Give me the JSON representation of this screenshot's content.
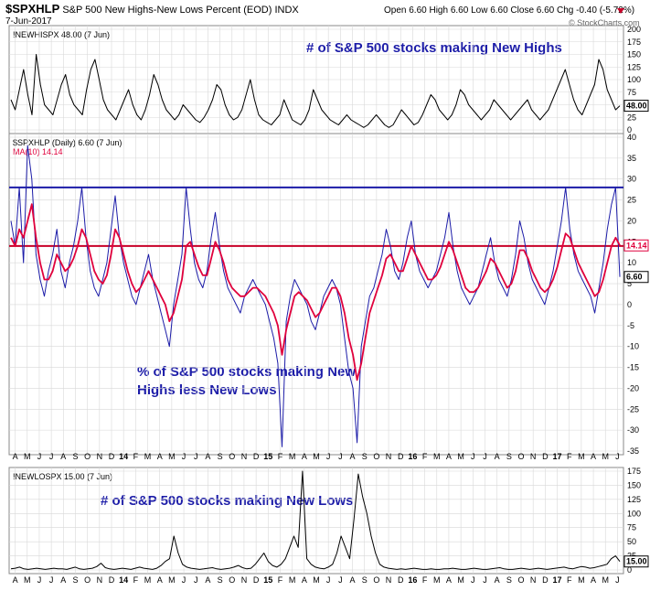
{
  "header": {
    "symbol": "$SPXHLP",
    "title": "S&P 500 New Highs-New Lows Percent (EOD)",
    "exchange": "INDX",
    "date": "7-Jun-2017",
    "quote": "Open 6.60  High 6.60  Low 6.60  Close 6.60  Chg -0.40 (-5.72%)",
    "source": "© StockCharts.com"
  },
  "colors": {
    "line": "#000000",
    "hlp": "#1c1ca8",
    "ma": "#e0003c",
    "ref_blue": "#1c1ca8",
    "ref_red": "#c80028",
    "grid": "#d8d8d8"
  },
  "chart_data": [
    {
      "type": "line",
      "id": "new-highs",
      "legend": "!NEWHISPX 48.00 (7 Jun)",
      "annotation": "# of S&P 500 stocks making New Highs",
      "ylim": [
        0,
        200
      ],
      "yticks": [
        0,
        25,
        50,
        75,
        100,
        125,
        150,
        175,
        200
      ],
      "last_value_label": "48.00",
      "series": [
        {
          "values": [
            60,
            40,
            80,
            120,
            70,
            30,
            150,
            90,
            50,
            40,
            30,
            60,
            90,
            110,
            70,
            50,
            40,
            30,
            80,
            120,
            140,
            100,
            60,
            40,
            30,
            20,
            40,
            60,
            80,
            50,
            30,
            20,
            40,
            70,
            110,
            90,
            60,
            40,
            30,
            20,
            30,
            50,
            40,
            30,
            20,
            15,
            25,
            40,
            60,
            90,
            80,
            50,
            30,
            20,
            25,
            40,
            70,
            100,
            60,
            30,
            20,
            15,
            10,
            20,
            30,
            60,
            40,
            20,
            15,
            10,
            20,
            40,
            80,
            60,
            40,
            30,
            20,
            15,
            10,
            20,
            30,
            20,
            15,
            10,
            5,
            10,
            20,
            30,
            20,
            10,
            5,
            10,
            25,
            40,
            30,
            20,
            10,
            15,
            30,
            50,
            70,
            60,
            40,
            30,
            20,
            30,
            50,
            80,
            70,
            50,
            40,
            30,
            20,
            30,
            40,
            60,
            50,
            40,
            30,
            20,
            30,
            40,
            50,
            60,
            40,
            30,
            20,
            30,
            40,
            60,
            80,
            100,
            120,
            90,
            60,
            40,
            30,
            50,
            70,
            90,
            140,
            120,
            80,
            60,
            40,
            48
          ]
        }
      ]
    },
    {
      "type": "line",
      "id": "hlp",
      "legend": "$SPXHLP (Daily) 6.60 (7 Jun)",
      "ma_legend": "MA(10) 14.14",
      "annotation": [
        "% of S&P 500 stocks making New",
        "Highs less New Lows"
      ],
      "ylim": [
        -35,
        40
      ],
      "yticks": [
        -35,
        -30,
        -25,
        -20,
        -15,
        -10,
        -5,
        0,
        5,
        10,
        15,
        20,
        25,
        30,
        35,
        40
      ],
      "ref_lines": [
        28,
        14
      ],
      "last_labels": [
        "14.14",
        "6.60"
      ],
      "series": [
        {
          "values": [
            20,
            14,
            28,
            10,
            38,
            30,
            12,
            6,
            2,
            8,
            12,
            18,
            8,
            4,
            10,
            14,
            20,
            28,
            16,
            8,
            4,
            2,
            6,
            10,
            18,
            26,
            16,
            10,
            6,
            2,
            0,
            4,
            8,
            12,
            6,
            2,
            -2,
            -6,
            -10,
            0,
            6,
            12,
            28,
            18,
            10,
            6,
            4,
            8,
            16,
            22,
            14,
            8,
            4,
            2,
            0,
            -2,
            2,
            4,
            6,
            4,
            2,
            0,
            -4,
            -8,
            -14,
            -34,
            -4,
            2,
            6,
            4,
            2,
            0,
            -4,
            -6,
            -2,
            2,
            4,
            6,
            4,
            0,
            -8,
            -16,
            -20,
            -33,
            -10,
            -4,
            2,
            4,
            8,
            12,
            18,
            14,
            8,
            6,
            10,
            16,
            20,
            12,
            8,
            6,
            4,
            6,
            8,
            12,
            16,
            22,
            14,
            8,
            4,
            2,
            0,
            2,
            4,
            8,
            12,
            16,
            10,
            6,
            4,
            2,
            6,
            12,
            20,
            16,
            10,
            6,
            4,
            2,
            0,
            4,
            8,
            14,
            20,
            28,
            18,
            12,
            8,
            6,
            4,
            2,
            -2,
            4,
            10,
            18,
            24,
            28,
            6.6
          ]
        },
        {
          "values": [
            16,
            14,
            18,
            16,
            20,
            24,
            16,
            10,
            6,
            6,
            8,
            12,
            10,
            8,
            9,
            11,
            14,
            18,
            16,
            12,
            8,
            6,
            5,
            7,
            12,
            18,
            16,
            12,
            8,
            5,
            3,
            4,
            6,
            8,
            6,
            4,
            2,
            0,
            -4,
            -2,
            2,
            6,
            14,
            15,
            12,
            9,
            7,
            7,
            11,
            15,
            13,
            10,
            6,
            4,
            3,
            2,
            2,
            3,
            4,
            4,
            3,
            2,
            0,
            -2,
            -5,
            -12,
            -6,
            -2,
            2,
            3,
            2,
            1,
            -1,
            -3,
            -2,
            0,
            2,
            4,
            4,
            2,
            -2,
            -8,
            -12,
            -18,
            -14,
            -8,
            -2,
            1,
            4,
            7,
            11,
            12,
            10,
            8,
            8,
            11,
            14,
            12,
            10,
            8,
            6,
            6,
            7,
            9,
            12,
            15,
            13,
            10,
            7,
            4,
            3,
            3,
            4,
            6,
            8,
            11,
            10,
            8,
            6,
            4,
            5,
            8,
            13,
            13,
            11,
            8,
            6,
            4,
            3,
            4,
            6,
            9,
            13,
            17,
            16,
            13,
            10,
            8,
            6,
            4,
            2,
            3,
            6,
            10,
            14,
            16,
            14.14
          ]
        }
      ]
    },
    {
      "type": "line",
      "id": "new-lows",
      "legend": "!NEWLOSPX 15.00 (7 Jun)",
      "annotation": "# of S&P 500 stocks making New Lows",
      "ylim": [
        0,
        175
      ],
      "yticks": [
        0,
        25,
        50,
        75,
        100,
        125,
        150,
        175
      ],
      "last_value_label": "15.00",
      "series": [
        {
          "values": [
            2,
            3,
            5,
            2,
            1,
            2,
            3,
            2,
            1,
            2,
            3,
            2,
            2,
            1,
            3,
            5,
            2,
            1,
            2,
            3,
            6,
            12,
            4,
            2,
            1,
            2,
            3,
            2,
            1,
            3,
            5,
            3,
            2,
            1,
            3,
            8,
            15,
            20,
            60,
            30,
            10,
            5,
            3,
            2,
            1,
            2,
            3,
            4,
            2,
            1,
            2,
            3,
            5,
            8,
            4,
            2,
            3,
            10,
            20,
            30,
            15,
            8,
            5,
            10,
            20,
            40,
            60,
            40,
            175,
            20,
            10,
            5,
            3,
            2,
            5,
            10,
            30,
            60,
            40,
            20,
            90,
            170,
            130,
            100,
            60,
            30,
            10,
            5,
            3,
            2,
            1,
            2,
            1,
            2,
            3,
            2,
            1,
            1,
            2,
            1,
            1,
            2,
            2,
            3,
            2,
            1,
            1,
            2,
            3,
            2,
            1,
            1,
            2,
            3,
            4,
            2,
            1,
            1,
            2,
            3,
            2,
            1,
            2,
            3,
            2,
            1,
            2,
            3,
            4,
            5,
            3,
            2,
            4,
            6,
            5,
            3,
            4,
            6,
            8,
            10,
            20,
            25,
            15
          ]
        }
      ]
    }
  ],
  "x_axis": {
    "labels": [
      "A",
      "M",
      "J",
      "J",
      "A",
      "S",
      "O",
      "N",
      "D",
      "14",
      "F",
      "M",
      "A",
      "M",
      "J",
      "J",
      "A",
      "S",
      "O",
      "N",
      "D",
      "15",
      "F",
      "M",
      "A",
      "M",
      "J",
      "J",
      "A",
      "S",
      "O",
      "N",
      "D",
      "16",
      "F",
      "M",
      "A",
      "M",
      "J",
      "J",
      "A",
      "S",
      "O",
      "N",
      "D",
      "17",
      "F",
      "M",
      "A",
      "M",
      "J"
    ],
    "year_labels": [
      "14",
      "15",
      "16",
      "17"
    ]
  }
}
